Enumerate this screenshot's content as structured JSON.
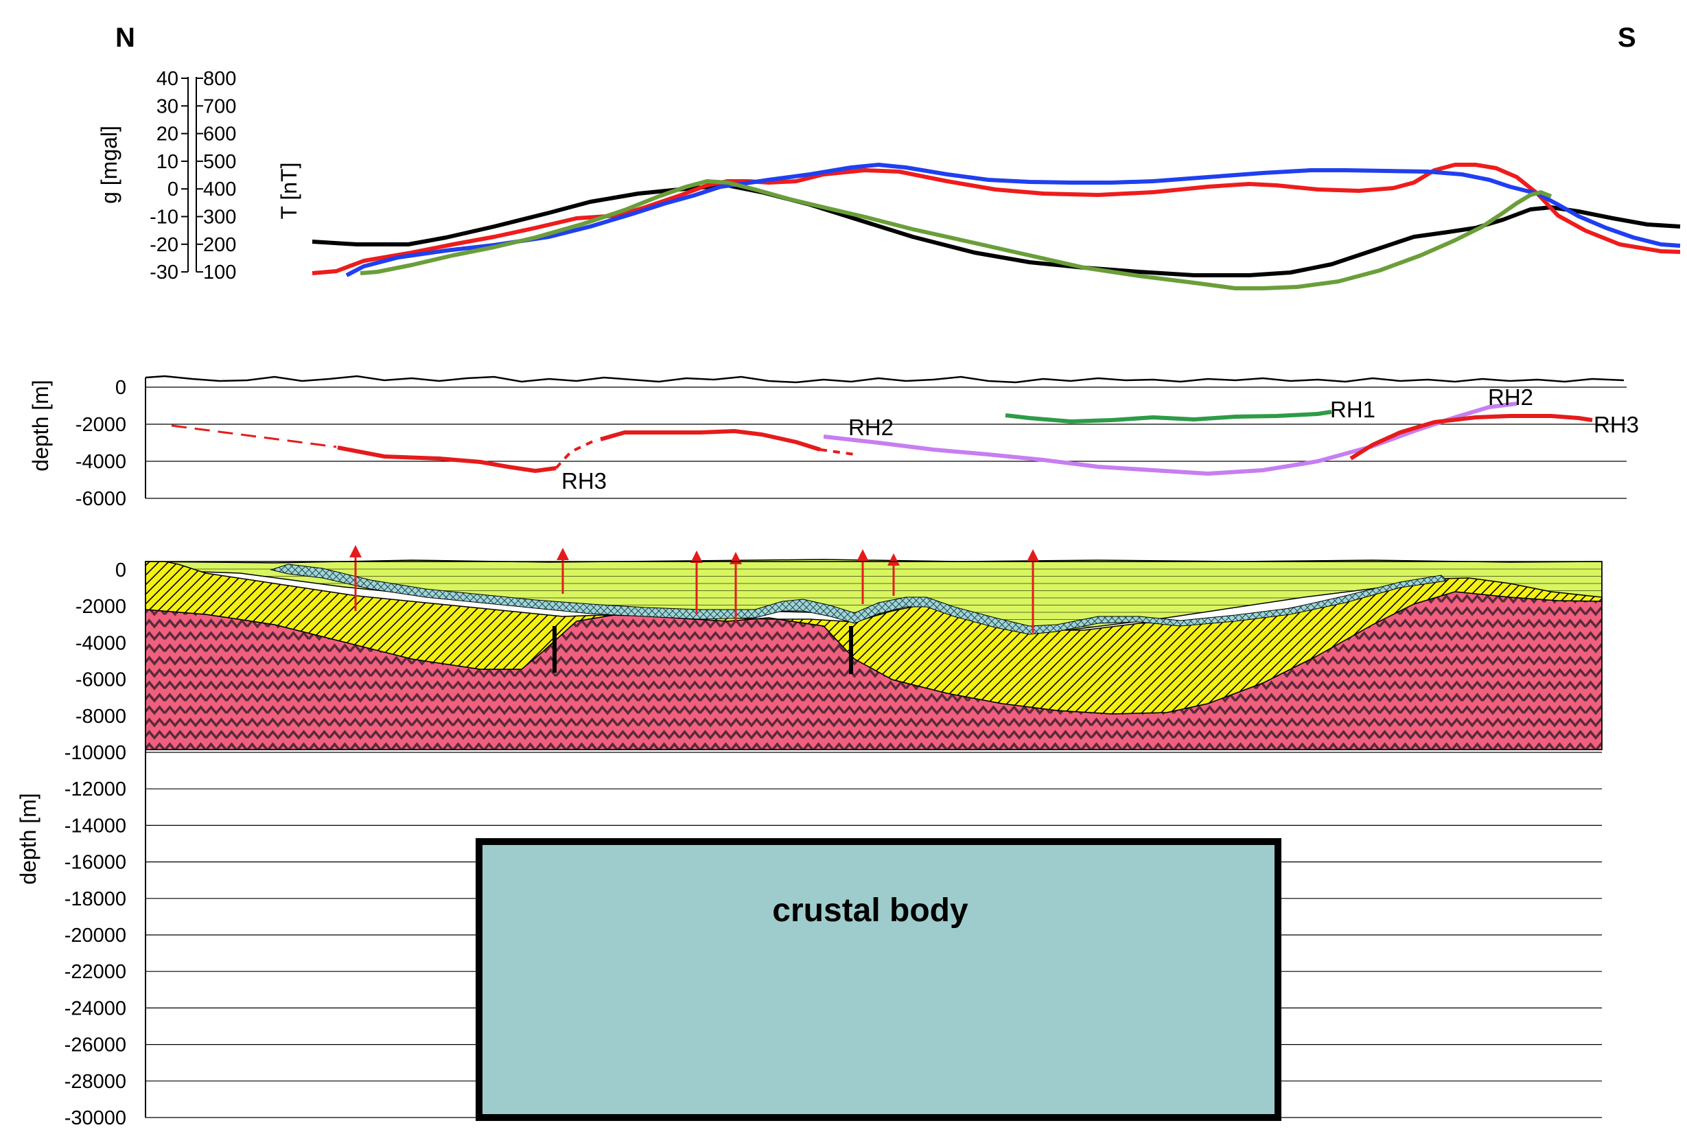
{
  "direction": {
    "left": "N",
    "right": "S"
  },
  "profile_panel": {
    "gravity_axis_label": "g [mgal]",
    "magnetic_axis_label": "T [nT]",
    "gravity_ticks": [
      "40",
      "30",
      "20",
      "10",
      "0",
      "-10",
      "-20",
      "-30"
    ],
    "magnetic_ticks": [
      "800",
      "700",
      "600",
      "500",
      "400",
      "300",
      "200",
      "100"
    ],
    "curve_colors": {
      "black": "#000000",
      "red": "#ee1c1c",
      "blue": "#1f3ff0",
      "green": "#6b9e3a"
    }
  },
  "horizon_panel": {
    "axis_label": "depth [m]",
    "ticks": [
      "0",
      "-2000",
      "-4000",
      "-6000"
    ],
    "horizons": {
      "rh1": "RH1",
      "rh2_left": "RH2",
      "rh2_right": "RH2",
      "rh3_left": "RH3",
      "rh3_right": "RH3"
    },
    "colors": {
      "rh1": "#2e9b47",
      "rh2": "#c77ef0",
      "rh3": "#e51b1b"
    }
  },
  "model_panel": {
    "axis_label": "depth [m]",
    "ticks": [
      "0",
      "-2000",
      "-4000",
      "-6000",
      "-8000",
      "-10000",
      "-12000",
      "-14000",
      "-16000",
      "-18000",
      "-20000",
      "-22000",
      "-24000",
      "-26000",
      "-28000",
      "-30000"
    ],
    "body_label": "crustal body",
    "colors": {
      "top_layer": "#d9f560",
      "sediment": "#f5f10f",
      "thin_layer": "#9ed7d6",
      "basement": "#f0607e",
      "crustal_body": "#9ecccc",
      "arrows": "#e51b1b"
    }
  }
}
